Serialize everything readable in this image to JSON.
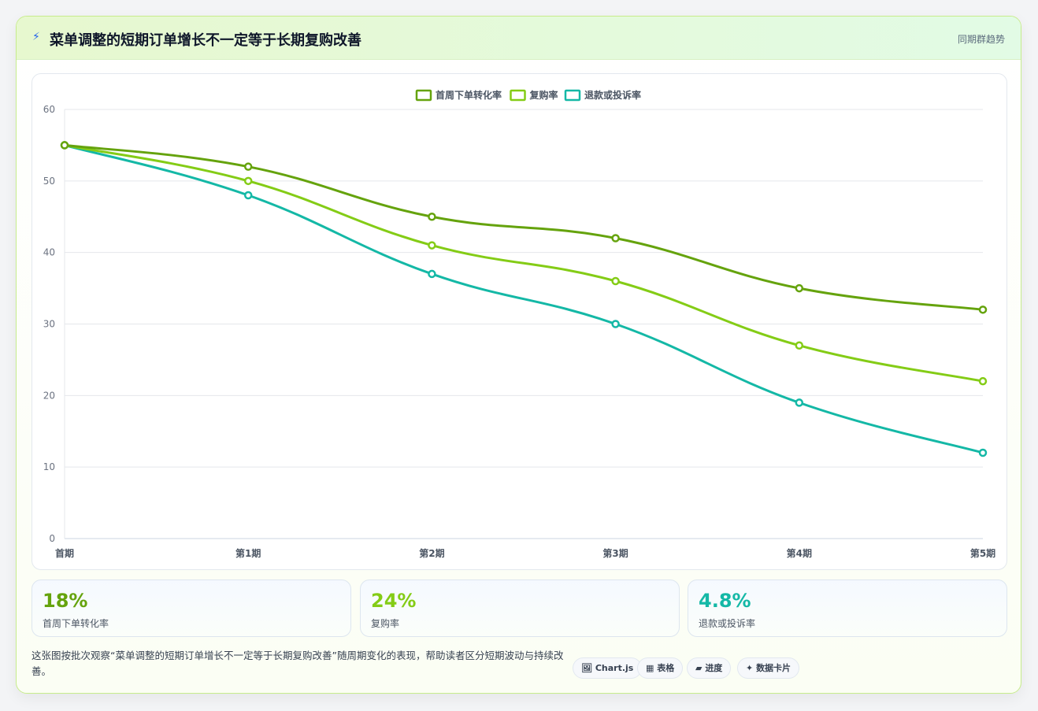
{
  "header": {
    "icon": "bolt-icon",
    "title": "菜单调整的短期订单增长不一定等于长期复购改善",
    "tag": "同期群趋势"
  },
  "chart_data": {
    "type": "line",
    "categories": [
      "首期",
      "第1期",
      "第2期",
      "第3期",
      "第4期",
      "第5期"
    ],
    "series": [
      {
        "name": "首周下单转化率",
        "color": "#65a30d",
        "values": [
          55,
          52,
          45,
          42,
          35,
          32
        ]
      },
      {
        "name": "复购率",
        "color": "#84cc16",
        "values": [
          55,
          50,
          41,
          36,
          27,
          22
        ]
      },
      {
        "name": "退款或投诉率",
        "color": "#14b8a6",
        "values": [
          55,
          48,
          37,
          30,
          19,
          12
        ]
      }
    ],
    "ylim": [
      0,
      60
    ],
    "yticks": [
      0,
      10,
      20,
      30,
      40,
      50,
      60
    ],
    "grid": true,
    "legend_position": "top-center"
  },
  "kpis": [
    {
      "value": "18%",
      "label": "首周下单转化率",
      "color": "#65a30d"
    },
    {
      "value": "24%",
      "label": "复购率",
      "color": "#84cc16"
    },
    {
      "value": "4.8%",
      "label": "退款或投诉率",
      "color": "#14b8a6"
    }
  ],
  "note": "这张图按批次观察“菜单调整的短期订单增长不一定等于长期复购改善”随周期变化的表现，帮助读者区分短期波动与持续改善。",
  "pills": [
    {
      "icon": "image-icon",
      "glyph": "🖼",
      "label": "Chart.js"
    },
    {
      "icon": "table-icon",
      "glyph": "▦",
      "label": "表格"
    },
    {
      "icon": "progress-icon",
      "glyph": "▰",
      "label": "进度"
    },
    {
      "icon": "sparkle-icon",
      "glyph": "✦",
      "label": "数据卡片"
    }
  ]
}
